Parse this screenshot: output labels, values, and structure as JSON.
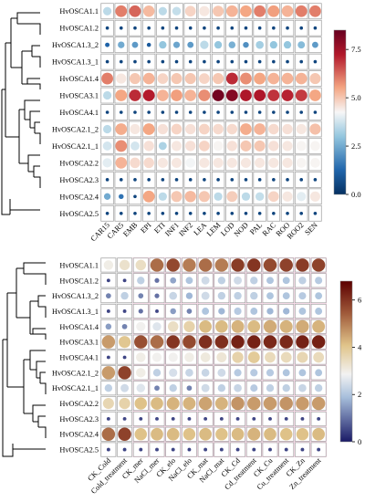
{
  "chart_data": [
    {
      "type": "heatmap",
      "rows": [
        "HvOSCA1.1",
        "HvOSCA1.2",
        "HvOSCA1.3_2",
        "HvOSCA1.3_1",
        "HvOSCA1.4",
        "HvOSCA3.1",
        "HvOSCA4.1",
        "HvOSCA2.1_2",
        "HvOSCA2.1_1",
        "HvOSCA2.2",
        "HvOSCA2.3",
        "HvOSCA2.4",
        "HvOSCA2.5"
      ],
      "columns": [
        "CAR15",
        "CAR5",
        "EMB",
        "EPI",
        "ETI",
        "INF1",
        "INF2",
        "LEA",
        "LEM",
        "LOD",
        "NOD",
        "PAL",
        "RAC",
        "ROO",
        "ROO2",
        "SEN"
      ],
      "values": [
        [
          3.5,
          6.0,
          6.3,
          5.2,
          3.5,
          3.6,
          4.8,
          4.5,
          5.0,
          5.3,
          5.5,
          6.0,
          5.6,
          5.3,
          6.0,
          6.0
        ],
        [
          0.5,
          0.5,
          0.5,
          0.5,
          0.5,
          0.5,
          0.5,
          0.5,
          0.5,
          0.5,
          0.5,
          0.5,
          0.5,
          0.5,
          0.5,
          0.5
        ],
        [
          1.2,
          2.5,
          2.2,
          1.0,
          3.0,
          2.4,
          2.2,
          3.5,
          3.0,
          2.6,
          2.0,
          3.2,
          3.0,
          3.0,
          2.8,
          2.2
        ],
        [
          0.5,
          0.5,
          0.5,
          0.5,
          0.5,
          0.5,
          0.5,
          0.5,
          0.5,
          0.5,
          0.5,
          0.5,
          0.5,
          0.5,
          0.5,
          0.5
        ],
        [
          6.0,
          4.5,
          5.0,
          5.3,
          4.8,
          5.0,
          5.0,
          4.8,
          5.0,
          7.0,
          5.8,
          5.5,
          5.3,
          5.3,
          5.3,
          5.0
        ],
        [
          3.5,
          5.5,
          7.0,
          7.2,
          5.3,
          5.6,
          5.3,
          5.8,
          8.3,
          8.0,
          7.3,
          7.3,
          6.9,
          7.1,
          6.8,
          5.5
        ],
        [
          0.5,
          0.5,
          0.5,
          0.5,
          0.5,
          0.5,
          0.5,
          0.5,
          0.5,
          0.5,
          0.5,
          0.5,
          0.5,
          0.5,
          0.5,
          0.5
        ],
        [
          3.5,
          5.4,
          4.5,
          5.5,
          4.6,
          4.8,
          4.6,
          4.8,
          4.7,
          4.7,
          5.4,
          5.3,
          4.7,
          4.6,
          4.5,
          5.1
        ],
        [
          3.8,
          5.8,
          3.8,
          4.6,
          3.3,
          4.5,
          4.6,
          4.8,
          4.3,
          4.6,
          5.0,
          5.0,
          4.6,
          4.5,
          4.3,
          4.3
        ],
        [
          4.0,
          5.3,
          4.7,
          4.7,
          4.5,
          4.5,
          4.2,
          4.5,
          4.5,
          4.5,
          4.5,
          4.5,
          4.5,
          4.5,
          4.3,
          4.3
        ],
        [
          0.5,
          0.5,
          0.5,
          0.5,
          0.5,
          0.5,
          0.5,
          0.5,
          0.5,
          0.5,
          0.5,
          0.5,
          0.5,
          0.5,
          0.5,
          0.5
        ],
        [
          2.5,
          1.5,
          0.5,
          5.5,
          3.5,
          5.0,
          5.2,
          5.0,
          3.5,
          4.9,
          3.5,
          3.6,
          4.8,
          4.5,
          4.0,
          4.5
        ],
        [
          0.5,
          0.5,
          0.5,
          0.5,
          0.5,
          0.5,
          0.5,
          0.5,
          0.5,
          0.5,
          0.5,
          0.5,
          0.5,
          0.5,
          0.5,
          0.5
        ]
      ],
      "colorbar": {
        "min": 0,
        "max": 8.5,
        "ticks": [
          "0.0",
          "2.5",
          "5.0",
          "7.5"
        ],
        "tick_values": [
          0,
          2.5,
          5,
          7.5
        ]
      },
      "colors": {
        "low": "#053061",
        "mid": "#f7f7f7",
        "high": "#67001f"
      }
    },
    {
      "type": "heatmap",
      "rows": [
        "HvOSCA1.1",
        "HvOSCA1.2",
        "HvOSCA1.3_2",
        "HvOSCA1.3_1",
        "HvOSCA1.4",
        "HvOSCA3.1",
        "HvOSCA4.1",
        "HvOSCA2.1_2",
        "HvOSCA2.1_1",
        "HvOSCA2.2",
        "HvOSCA2.3",
        "HvOSCA2.4",
        "HvOSCA2.5"
      ],
      "columns": [
        "CK_Cold",
        "Cold_treatment",
        "CK_mer",
        "NaCl_mer",
        "CK_elo",
        "NaCl_elo",
        "CK_mat",
        "NaCl_mat",
        "CK_Cd",
        "Cd_treatment",
        "CK_Cu",
        "Cu_treatment",
        "CK_Zn",
        "Zn_treatment"
      ],
      "values": [
        [
          3.0,
          3.3,
          3.4,
          5.2,
          5.7,
          5.0,
          5.2,
          5.0,
          5.9,
          6.0,
          5.7,
          5.8,
          5.9,
          5.8
        ],
        [
          0.5,
          0.5,
          2.2,
          1.0,
          1.6,
          2.0,
          2.4,
          2.2,
          2.4,
          2.2,
          2.0,
          2.0,
          2.2,
          2.1
        ],
        [
          1.2,
          2.2,
          1.2,
          1.0,
          2.3,
          1.8,
          2.4,
          2.2,
          2.2,
          2.2,
          2.0,
          2.0,
          2.1,
          2.0
        ],
        [
          0.5,
          0.5,
          1.0,
          0.5,
          1.5,
          1.2,
          2.0,
          1.8,
          2.1,
          2.0,
          1.8,
          1.8,
          2.0,
          2.0
        ],
        [
          1.5,
          1.2,
          2.9,
          2.6,
          3.4,
          3.7,
          4.2,
          4.2,
          4.3,
          4.2,
          4.4,
          4.3,
          4.4,
          4.3
        ],
        [
          4.6,
          4.0,
          5.6,
          5.2,
          6.0,
          5.7,
          6.1,
          6.1,
          6.3,
          6.3,
          6.2,
          6.2,
          6.3,
          6.3
        ],
        [
          0.5,
          0.5,
          3.0,
          2.9,
          2.9,
          3.0,
          3.1,
          3.2,
          3.7,
          3.9,
          3.5,
          3.5,
          3.6,
          3.5
        ],
        [
          4.6,
          5.8,
          3.0,
          2.2,
          2.5,
          2.3,
          2.3,
          2.4,
          2.1,
          2.1,
          2.1,
          2.0,
          2.0,
          2.0
        ],
        [
          2.2,
          2.4,
          2.6,
          1.2,
          2.2,
          1.2,
          2.4,
          2.2,
          2.3,
          2.1,
          2.2,
          2.2,
          2.3,
          2.2
        ],
        [
          3.6,
          3.7,
          4.1,
          4.2,
          4.3,
          4.3,
          4.5,
          4.3,
          4.7,
          4.6,
          4.6,
          4.7,
          4.6,
          4.6
        ],
        [
          0.5,
          0.5,
          0.5,
          0.5,
          0.5,
          0.5,
          0.5,
          0.5,
          0.5,
          0.5,
          0.5,
          0.5,
          0.5,
          0.5
        ],
        [
          5.2,
          5.8,
          4.1,
          4.2,
          4.2,
          4.1,
          4.2,
          4.1,
          4.2,
          4.3,
          4.2,
          4.1,
          4.1,
          4.2
        ],
        [
          0.5,
          0.5,
          0.5,
          0.5,
          0.5,
          0.5,
          0.5,
          0.5,
          0.5,
          0.5,
          0.5,
          0.5,
          0.5,
          0.5
        ]
      ],
      "colorbar": {
        "min": 0,
        "max": 6.8,
        "ticks": [
          "0",
          "2",
          "4",
          "6"
        ],
        "tick_values": [
          0,
          2,
          4,
          6
        ]
      },
      "colors": {
        "low": "#1a1a66",
        "mid": "#f2f2f2",
        "high": "#5c0000"
      }
    }
  ]
}
